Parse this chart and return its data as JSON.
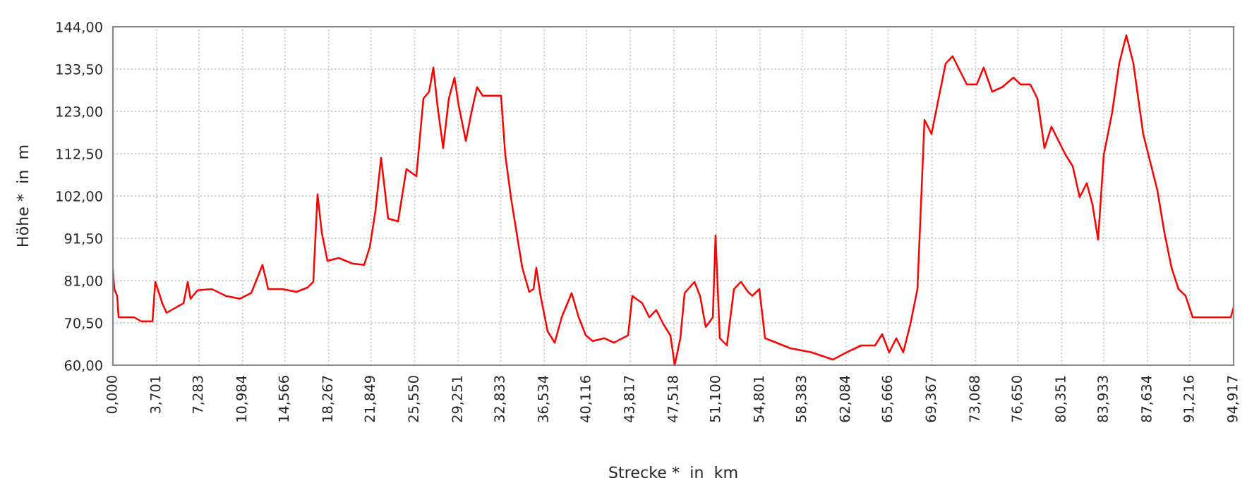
{
  "chart_data": {
    "type": "line",
    "xlabel": "Strecke *  in  km",
    "ylabel": "Höhe *  in  m",
    "x": [
      0,
      0.12,
      0.36,
      0.48,
      1.79,
      2.39,
      3.35,
      3.59,
      4.18,
      4.54,
      5.38,
      5.98,
      6.34,
      6.57,
      7.17,
      8.37,
      9.56,
      10.76,
      11.71,
      12.67,
      13.15,
      14.34,
      15.54,
      16.5,
      16.97,
      17.33,
      17.69,
      18.17,
      19.13,
      20.32,
      21.28,
      21.76,
      22.23,
      22.71,
      23.31,
      24.15,
      24.86,
      25.7,
      26.3,
      26.78,
      27.14,
      27.49,
      27.97,
      28.45,
      28.93,
      29.29,
      29.89,
      30.36,
      30.84,
      31.32,
      32.28,
      32.87,
      33.23,
      33.71,
      34.19,
      34.67,
      35.26,
      35.62,
      35.86,
      36.22,
      36.82,
      37.42,
      38.01,
      38.85,
      39.45,
      40.05,
      40.64,
      41.6,
      42.44,
      43.63,
      43.99,
      44.83,
      45.43,
      46.02,
      46.62,
      47.22,
      47.58,
      48.06,
      48.42,
      49.25,
      49.73,
      50.21,
      50.81,
      51.04,
      51.4,
      52.0,
      52.6,
      53.2,
      53.79,
      54.15,
      54.75,
      55.23,
      56.18,
      57.38,
      59.17,
      60.97,
      62.16,
      63.36,
      64.55,
      65.15,
      65.75,
      66.35,
      66.94,
      67.54,
      68.14,
      68.74,
      69.33,
      69.93,
      70.53,
      71.12,
      71.72,
      72.32,
      73.16,
      73.75,
      74.47,
      75.31,
      76.27,
      76.87,
      77.7,
      78.3,
      78.9,
      79.49,
      80.09,
      80.69,
      81.29,
      81.88,
      82.48,
      82.96,
      83.44,
      83.92,
      84.63,
      85.23,
      85.83,
      86.43,
      87.26,
      87.86,
      88.46,
      89.06,
      89.66,
      90.25,
      90.85,
      91.45,
      92.64,
      94.68,
      94.917
    ],
    "series": [
      {
        "color": "#ff0000",
        "values": [
          83.8,
          78.9,
          77.2,
          71.9,
          71.9,
          70.9,
          70.9,
          80.7,
          75.4,
          73.0,
          74.4,
          75.4,
          80.7,
          76.5,
          78.6,
          78.9,
          77.2,
          76.5,
          77.9,
          84.9,
          78.9,
          78.9,
          78.2,
          79.3,
          80.7,
          102.4,
          92.9,
          85.9,
          86.6,
          85.2,
          84.9,
          89.4,
          98.2,
          111.5,
          96.4,
          95.7,
          108.7,
          106.9,
          126.2,
          127.9,
          133.9,
          124.4,
          113.9,
          126.2,
          131.4,
          124.4,
          115.7,
          122.7,
          129.0,
          126.9,
          126.9,
          126.9,
          112.2,
          101.7,
          92.9,
          84.2,
          78.2,
          78.9,
          84.2,
          77.2,
          68.4,
          65.6,
          71.9,
          77.9,
          71.9,
          67.4,
          66.0,
          66.7,
          65.6,
          67.4,
          77.2,
          75.4,
          71.9,
          73.7,
          70.2,
          67.4,
          60.0,
          66.7,
          77.9,
          80.7,
          77.2,
          69.5,
          71.9,
          92.2,
          66.7,
          64.9,
          78.9,
          80.7,
          78.2,
          77.2,
          78.9,
          66.7,
          65.6,
          64.2,
          63.2,
          61.4,
          63.2,
          64.9,
          64.9,
          67.7,
          63.2,
          66.7,
          63.2,
          70.2,
          78.9,
          120.9,
          117.4,
          126.2,
          134.9,
          136.7,
          133.2,
          129.7,
          129.7,
          133.9,
          127.9,
          129.0,
          131.4,
          129.7,
          129.7,
          126.2,
          113.9,
          119.2,
          115.7,
          112.2,
          109.4,
          101.7,
          105.2,
          99.9,
          91.2,
          112.2,
          122.7,
          134.9,
          141.9,
          134.9,
          117.4,
          110.4,
          103.4,
          92.9,
          84.2,
          78.9,
          77.2,
          71.9,
          71.9,
          71.9,
          74.4
        ]
      }
    ],
    "xlim": [
      0,
      94.917
    ],
    "xticks": [
      {
        "value": 0,
        "label": "0,000"
      },
      {
        "value": 3.701,
        "label": "3,701"
      },
      {
        "value": 7.283,
        "label": "7,283"
      },
      {
        "value": 10.984,
        "label": "10,984"
      },
      {
        "value": 14.566,
        "label": "14,566"
      },
      {
        "value": 18.267,
        "label": "18,267"
      },
      {
        "value": 21.849,
        "label": "21,849"
      },
      {
        "value": 25.55,
        "label": "25,550"
      },
      {
        "value": 29.251,
        "label": "29,251"
      },
      {
        "value": 32.833,
        "label": "32,833"
      },
      {
        "value": 36.534,
        "label": "36,534"
      },
      {
        "value": 40.116,
        "label": "40,116"
      },
      {
        "value": 43.817,
        "label": "43,817"
      },
      {
        "value": 47.518,
        "label": "47,518"
      },
      {
        "value": 51.1,
        "label": "51,100"
      },
      {
        "value": 54.801,
        "label": "54,801"
      },
      {
        "value": 58.383,
        "label": "58,383"
      },
      {
        "value": 62.084,
        "label": "62,084"
      },
      {
        "value": 65.666,
        "label": "65,666"
      },
      {
        "value": 69.367,
        "label": "69,367"
      },
      {
        "value": 73.068,
        "label": "73,068"
      },
      {
        "value": 76.65,
        "label": "76,650"
      },
      {
        "value": 80.351,
        "label": "80,351"
      },
      {
        "value": 83.933,
        "label": "83,933"
      },
      {
        "value": 87.634,
        "label": "87,634"
      },
      {
        "value": 91.216,
        "label": "91,216"
      },
      {
        "value": 94.917,
        "label": "94,917"
      }
    ],
    "ylim": [
      60,
      144
    ],
    "yticks": [
      {
        "value": 60,
        "label": "60,00"
      },
      {
        "value": 70.5,
        "label": "70,50"
      },
      {
        "value": 81,
        "label": "81,00"
      },
      {
        "value": 91.5,
        "label": "91,50"
      },
      {
        "value": 102,
        "label": "102,00"
      },
      {
        "value": 112.5,
        "label": "112,50"
      },
      {
        "value": 123,
        "label": "123,00"
      },
      {
        "value": 133.5,
        "label": "133,50"
      },
      {
        "value": 144,
        "label": "144,00"
      }
    ],
    "grid": true,
    "legend": false,
    "marker": "none",
    "line_style": "solid"
  }
}
